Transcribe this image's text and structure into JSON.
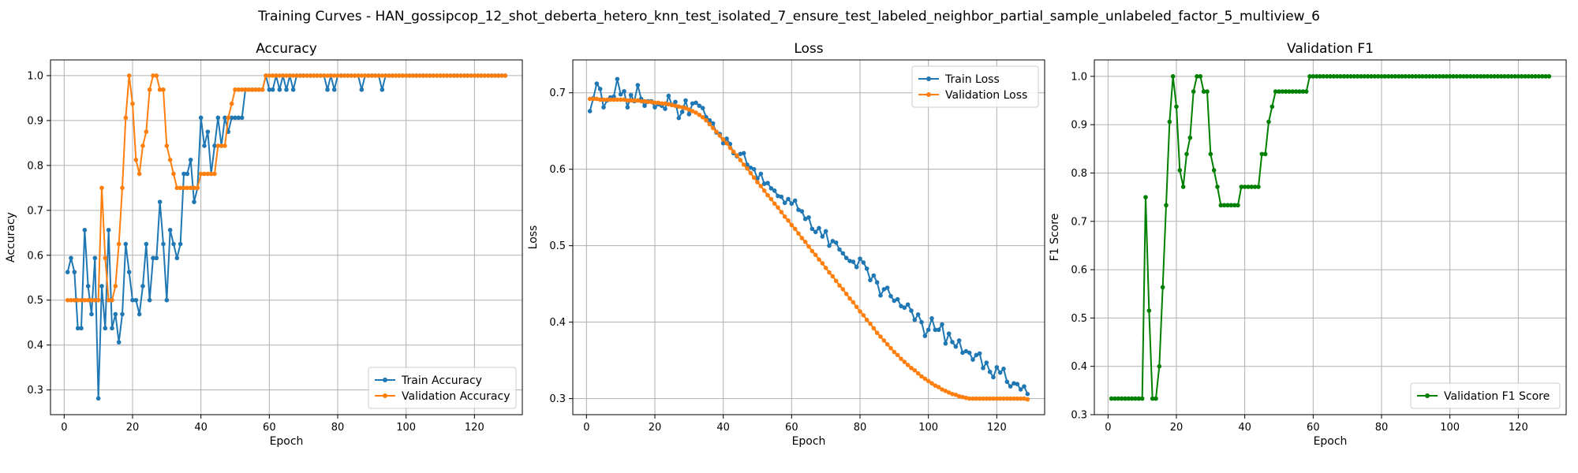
{
  "figure": {
    "suptitle": "Training Curves - HAN_gossipcop_12_shot_deberta_hetero_knn_test_isolated_7_ensure_test_labeled_neighbor_partial_sample_unlabeled_factor_5_multiview_6"
  },
  "colors": {
    "train": "#1f77b4",
    "validation": "#ff7f0e",
    "f1": "#008000",
    "grid": "#b0b0b0"
  },
  "chart_data": [
    {
      "type": "line",
      "title": "Accuracy",
      "xlabel": "Epoch",
      "ylabel": "Accuracy",
      "xlim": [
        -4,
        134
      ],
      "ylim": [
        0.245,
        1.035
      ],
      "xticks": [
        0,
        20,
        40,
        60,
        80,
        100,
        120
      ],
      "yticks": [
        0.3,
        0.4,
        0.5,
        0.6,
        0.7,
        0.8,
        0.9,
        1.0
      ],
      "legend": "lower-right",
      "grid": true,
      "x": [
        1,
        2,
        3,
        4,
        5,
        6,
        7,
        8,
        9,
        10,
        11,
        12,
        13,
        14,
        15,
        16,
        17,
        18,
        19,
        20,
        21,
        22,
        23,
        24,
        25,
        26,
        27,
        28,
        29,
        30,
        31,
        32,
        33,
        34,
        35,
        36,
        37,
        38,
        39,
        40,
        41,
        42,
        43,
        44,
        45,
        46,
        47,
        48,
        49,
        50,
        51,
        52,
        53,
        54,
        55,
        56,
        57,
        58,
        59,
        60,
        61,
        62,
        63,
        64,
        65,
        66,
        67,
        68,
        69,
        70,
        71,
        72,
        73,
        74,
        75,
        76,
        77,
        78,
        79,
        80,
        81,
        82,
        83,
        84,
        85,
        86,
        87,
        88,
        89,
        90,
        91,
        92,
        93,
        94,
        95,
        96,
        97,
        98,
        99,
        100,
        101,
        102,
        103,
        104,
        105,
        106,
        107,
        108,
        109,
        110,
        111,
        112,
        113,
        114,
        115,
        116,
        117,
        118,
        119,
        120,
        121,
        122,
        123,
        124,
        125,
        126,
        127,
        128,
        129
      ],
      "series": [
        {
          "name": "Train Accuracy",
          "color": "#1f77b4",
          "values": [
            0.5625,
            0.59375,
            0.5625,
            0.4375,
            0.4375,
            0.65625,
            0.53125,
            0.46875,
            0.59375,
            0.28125,
            0.53125,
            0.4375,
            0.65625,
            0.4375,
            0.46875,
            0.40625,
            0.46875,
            0.625,
            0.5625,
            0.5,
            0.5,
            0.46875,
            0.53125,
            0.625,
            0.5,
            0.59375,
            0.59375,
            0.71875,
            0.625,
            0.5,
            0.65625,
            0.625,
            0.59375,
            0.625,
            0.78125,
            0.78125,
            0.8125,
            0.71875,
            0.75,
            0.90625,
            0.84375,
            0.875,
            0.78125,
            0.84375,
            0.90625,
            0.84375,
            0.90625,
            0.875,
            0.90625,
            0.90625,
            0.90625,
            0.90625,
            0.96875,
            0.96875,
            0.96875,
            0.96875,
            0.96875,
            0.96875,
            1.0,
            0.96875,
            0.96875,
            1.0,
            0.96875,
            1.0,
            0.96875,
            1.0,
            0.96875,
            1.0,
            1.0,
            1.0,
            1.0,
            1.0,
            1.0,
            1.0,
            1.0,
            1.0,
            0.96875,
            1.0,
            0.96875,
            1.0,
            1.0,
            1.0,
            1.0,
            1.0,
            1.0,
            1.0,
            0.96875,
            1.0,
            1.0,
            1.0,
            1.0,
            1.0,
            0.96875,
            1.0,
            1.0,
            1.0,
            1.0,
            1.0,
            1.0,
            1.0,
            1.0,
            1.0,
            1.0,
            1.0,
            1.0,
            1.0,
            1.0,
            1.0,
            1.0,
            1.0,
            1.0,
            1.0,
            1.0,
            1.0,
            1.0,
            1.0,
            1.0,
            1.0,
            1.0,
            1.0,
            1.0,
            1.0,
            1.0,
            1.0,
            1.0,
            1.0,
            1.0,
            1.0,
            1.0
          ]
        },
        {
          "name": "Validation Accuracy",
          "color": "#ff7f0e",
          "values": [
            0.5,
            0.5,
            0.5,
            0.5,
            0.5,
            0.5,
            0.5,
            0.5,
            0.5,
            0.5,
            0.75,
            0.59375,
            0.5,
            0.5,
            0.53125,
            0.625,
            0.75,
            0.90625,
            1.0,
            0.9375,
            0.8125,
            0.78125,
            0.84375,
            0.875,
            0.96875,
            1.0,
            1.0,
            0.96875,
            0.96875,
            0.84375,
            0.8125,
            0.78125,
            0.75,
            0.75,
            0.75,
            0.75,
            0.75,
            0.75,
            0.75,
            0.78125,
            0.78125,
            0.78125,
            0.78125,
            0.78125,
            0.84375,
            0.84375,
            0.84375,
            0.90625,
            0.9375,
            0.96875,
            0.96875,
            0.96875,
            0.96875,
            0.96875,
            0.96875,
            0.96875,
            0.96875,
            0.96875,
            1.0,
            1.0,
            1.0,
            1.0,
            1.0,
            1.0,
            1.0,
            1.0,
            1.0,
            1.0,
            1.0,
            1.0,
            1.0,
            1.0,
            1.0,
            1.0,
            1.0,
            1.0,
            1.0,
            1.0,
            1.0,
            1.0,
            1.0,
            1.0,
            1.0,
            1.0,
            1.0,
            1.0,
            1.0,
            1.0,
            1.0,
            1.0,
            1.0,
            1.0,
            1.0,
            1.0,
            1.0,
            1.0,
            1.0,
            1.0,
            1.0,
            1.0,
            1.0,
            1.0,
            1.0,
            1.0,
            1.0,
            1.0,
            1.0,
            1.0,
            1.0,
            1.0,
            1.0,
            1.0,
            1.0,
            1.0,
            1.0,
            1.0,
            1.0,
            1.0,
            1.0,
            1.0,
            1.0,
            1.0,
            1.0,
            1.0,
            1.0,
            1.0,
            1.0,
            1.0,
            1.0
          ]
        }
      ]
    },
    {
      "type": "line",
      "title": "Loss",
      "xlabel": "Epoch",
      "ylabel": "Loss",
      "xlim": [
        -4,
        134
      ],
      "ylim": [
        0.279,
        0.743
      ],
      "xticks": [
        0,
        20,
        40,
        60,
        80,
        100,
        120
      ],
      "yticks": [
        0.3,
        0.4,
        0.5,
        0.6,
        0.7
      ],
      "legend": "top-right",
      "grid": true,
      "x": [
        1,
        2,
        3,
        4,
        5,
        6,
        7,
        8,
        9,
        10,
        11,
        12,
        13,
        14,
        15,
        16,
        17,
        18,
        19,
        20,
        21,
        22,
        23,
        24,
        25,
        26,
        27,
        28,
        29,
        30,
        31,
        32,
        33,
        34,
        35,
        36,
        37,
        38,
        39,
        40,
        41,
        42,
        43,
        44,
        45,
        46,
        47,
        48,
        49,
        50,
        51,
        52,
        53,
        54,
        55,
        56,
        57,
        58,
        59,
        60,
        61,
        62,
        63,
        64,
        65,
        66,
        67,
        68,
        69,
        70,
        71,
        72,
        73,
        74,
        75,
        76,
        77,
        78,
        79,
        80,
        81,
        82,
        83,
        84,
        85,
        86,
        87,
        88,
        89,
        90,
        91,
        92,
        93,
        94,
        95,
        96,
        97,
        98,
        99,
        100,
        101,
        102,
        103,
        104,
        105,
        106,
        107,
        108,
        109,
        110,
        111,
        112,
        113,
        114,
        115,
        116,
        117,
        118,
        119,
        120,
        121,
        122,
        123,
        124,
        125,
        126,
        127,
        128,
        129
      ],
      "series": [
        {
          "name": "Train Loss",
          "color": "#1f77b4",
          "values": [
            0.676,
            0.693,
            0.712,
            0.705,
            0.681,
            0.69,
            0.694,
            0.695,
            0.718,
            0.698,
            0.702,
            0.681,
            0.697,
            0.689,
            0.71,
            0.692,
            0.683,
            0.689,
            0.689,
            0.681,
            0.685,
            0.683,
            0.679,
            0.696,
            0.684,
            0.688,
            0.667,
            0.675,
            0.69,
            0.672,
            0.686,
            0.687,
            0.683,
            0.68,
            0.668,
            0.664,
            0.66,
            0.648,
            0.646,
            0.634,
            0.64,
            0.633,
            0.621,
            0.617,
            0.62,
            0.621,
            0.606,
            0.602,
            0.6,
            0.588,
            0.594,
            0.581,
            0.582,
            0.575,
            0.572,
            0.565,
            0.564,
            0.556,
            0.561,
            0.555,
            0.559,
            0.547,
            0.545,
            0.535,
            0.537,
            0.522,
            0.518,
            0.523,
            0.512,
            0.519,
            0.5,
            0.506,
            0.504,
            0.495,
            0.49,
            0.484,
            0.48,
            0.479,
            0.472,
            0.483,
            0.478,
            0.47,
            0.455,
            0.461,
            0.452,
            0.435,
            0.443,
            0.445,
            0.434,
            0.428,
            0.43,
            0.421,
            0.419,
            0.423,
            0.415,
            0.403,
            0.41,
            0.4,
            0.382,
            0.39,
            0.405,
            0.39,
            0.39,
            0.397,
            0.372,
            0.385,
            0.374,
            0.368,
            0.376,
            0.36,
            0.362,
            0.36,
            0.351,
            0.357,
            0.359,
            0.34,
            0.347,
            0.335,
            0.328,
            0.341,
            0.334,
            0.339,
            0.322,
            0.316,
            0.32,
            0.319,
            0.312,
            0.316,
            0.306
          ]
        },
        {
          "name": "Validation Loss",
          "color": "#ff7f0e",
          "values": [
            0.692,
            0.692,
            0.692,
            0.691,
            0.691,
            0.691,
            0.691,
            0.691,
            0.691,
            0.691,
            0.691,
            0.69,
            0.69,
            0.69,
            0.69,
            0.689,
            0.689,
            0.688,
            0.688,
            0.687,
            0.687,
            0.686,
            0.686,
            0.685,
            0.684,
            0.683,
            0.682,
            0.681,
            0.68,
            0.678,
            0.676,
            0.674,
            0.671,
            0.668,
            0.664,
            0.659,
            0.654,
            0.649,
            0.644,
            0.639,
            0.634,
            0.628,
            0.623,
            0.618,
            0.612,
            0.606,
            0.601,
            0.595,
            0.589,
            0.583,
            0.578,
            0.572,
            0.566,
            0.561,
            0.555,
            0.55,
            0.544,
            0.538,
            0.533,
            0.527,
            0.522,
            0.516,
            0.51,
            0.505,
            0.499,
            0.493,
            0.488,
            0.482,
            0.477,
            0.471,
            0.465,
            0.46,
            0.454,
            0.448,
            0.443,
            0.437,
            0.431,
            0.426,
            0.42,
            0.414,
            0.409,
            0.403,
            0.398,
            0.392,
            0.386,
            0.381,
            0.376,
            0.371,
            0.366,
            0.361,
            0.357,
            0.352,
            0.348,
            0.344,
            0.34,
            0.337,
            0.333,
            0.329,
            0.326,
            0.323,
            0.32,
            0.317,
            0.315,
            0.312,
            0.31,
            0.308,
            0.306,
            0.305,
            0.303,
            0.302,
            0.301,
            0.3,
            0.3,
            0.3,
            0.3,
            0.3,
            0.3,
            0.3,
            0.3,
            0.3,
            0.3,
            0.3,
            0.3,
            0.3,
            0.3,
            0.3,
            0.3,
            0.3,
            0.299
          ]
        }
      ]
    },
    {
      "type": "line",
      "title": "Validation F1",
      "xlabel": "Epoch",
      "ylabel": "F1 Score",
      "xlim": [
        -4,
        134
      ],
      "ylim": [
        0.3,
        1.034
      ],
      "xticks": [
        0,
        20,
        40,
        60,
        80,
        100,
        120
      ],
      "yticks": [
        0.3,
        0.4,
        0.5,
        0.6,
        0.7,
        0.8,
        0.9,
        1.0
      ],
      "legend": "lower-right",
      "grid": true,
      "x": [
        1,
        2,
        3,
        4,
        5,
        6,
        7,
        8,
        9,
        10,
        11,
        12,
        13,
        14,
        15,
        16,
        17,
        18,
        19,
        20,
        21,
        22,
        23,
        24,
        25,
        26,
        27,
        28,
        29,
        30,
        31,
        32,
        33,
        34,
        35,
        36,
        37,
        38,
        39,
        40,
        41,
        42,
        43,
        44,
        45,
        46,
        47,
        48,
        49,
        50,
        51,
        52,
        53,
        54,
        55,
        56,
        57,
        58,
        59,
        60,
        61,
        62,
        63,
        64,
        65,
        66,
        67,
        68,
        69,
        70,
        71,
        72,
        73,
        74,
        75,
        76,
        77,
        78,
        79,
        80,
        81,
        82,
        83,
        84,
        85,
        86,
        87,
        88,
        89,
        90,
        91,
        92,
        93,
        94,
        95,
        96,
        97,
        98,
        99,
        100,
        101,
        102,
        103,
        104,
        105,
        106,
        107,
        108,
        109,
        110,
        111,
        112,
        113,
        114,
        115,
        116,
        117,
        118,
        119,
        120,
        121,
        122,
        123,
        124,
        125,
        126,
        127,
        128,
        129
      ],
      "series": [
        {
          "name": "Validation F1 Score",
          "color": "#008000",
          "values": [
            0.3333,
            0.3333,
            0.3333,
            0.3333,
            0.3333,
            0.3333,
            0.3333,
            0.3333,
            0.3333,
            0.3333,
            0.75,
            0.5152,
            0.3333,
            0.3333,
            0.4,
            0.5636,
            0.7333,
            0.9059,
            1.0,
            0.9373,
            0.8056,
            0.7714,
            0.8392,
            0.873,
            0.9686,
            1.0,
            1.0,
            0.9686,
            0.9686,
            0.8392,
            0.8056,
            0.7714,
            0.7333,
            0.7333,
            0.7333,
            0.7333,
            0.7333,
            0.7333,
            0.7714,
            0.7714,
            0.7714,
            0.7714,
            0.7714,
            0.7714,
            0.8392,
            0.8392,
            0.9059,
            0.9373,
            0.9686,
            0.9686,
            0.9686,
            0.9686,
            0.9686,
            0.9686,
            0.9686,
            0.9686,
            0.9686,
            0.9686,
            1.0,
            1.0,
            1.0,
            1.0,
            1.0,
            1.0,
            1.0,
            1.0,
            1.0,
            1.0,
            1.0,
            1.0,
            1.0,
            1.0,
            1.0,
            1.0,
            1.0,
            1.0,
            1.0,
            1.0,
            1.0,
            1.0,
            1.0,
            1.0,
            1.0,
            1.0,
            1.0,
            1.0,
            1.0,
            1.0,
            1.0,
            1.0,
            1.0,
            1.0,
            1.0,
            1.0,
            1.0,
            1.0,
            1.0,
            1.0,
            1.0,
            1.0,
            1.0,
            1.0,
            1.0,
            1.0,
            1.0,
            1.0,
            1.0,
            1.0,
            1.0,
            1.0,
            1.0,
            1.0,
            1.0,
            1.0,
            1.0,
            1.0,
            1.0,
            1.0,
            1.0,
            1.0,
            1.0,
            1.0,
            1.0,
            1.0,
            1.0,
            1.0,
            1.0,
            1.0,
            1.0
          ]
        }
      ]
    }
  ]
}
